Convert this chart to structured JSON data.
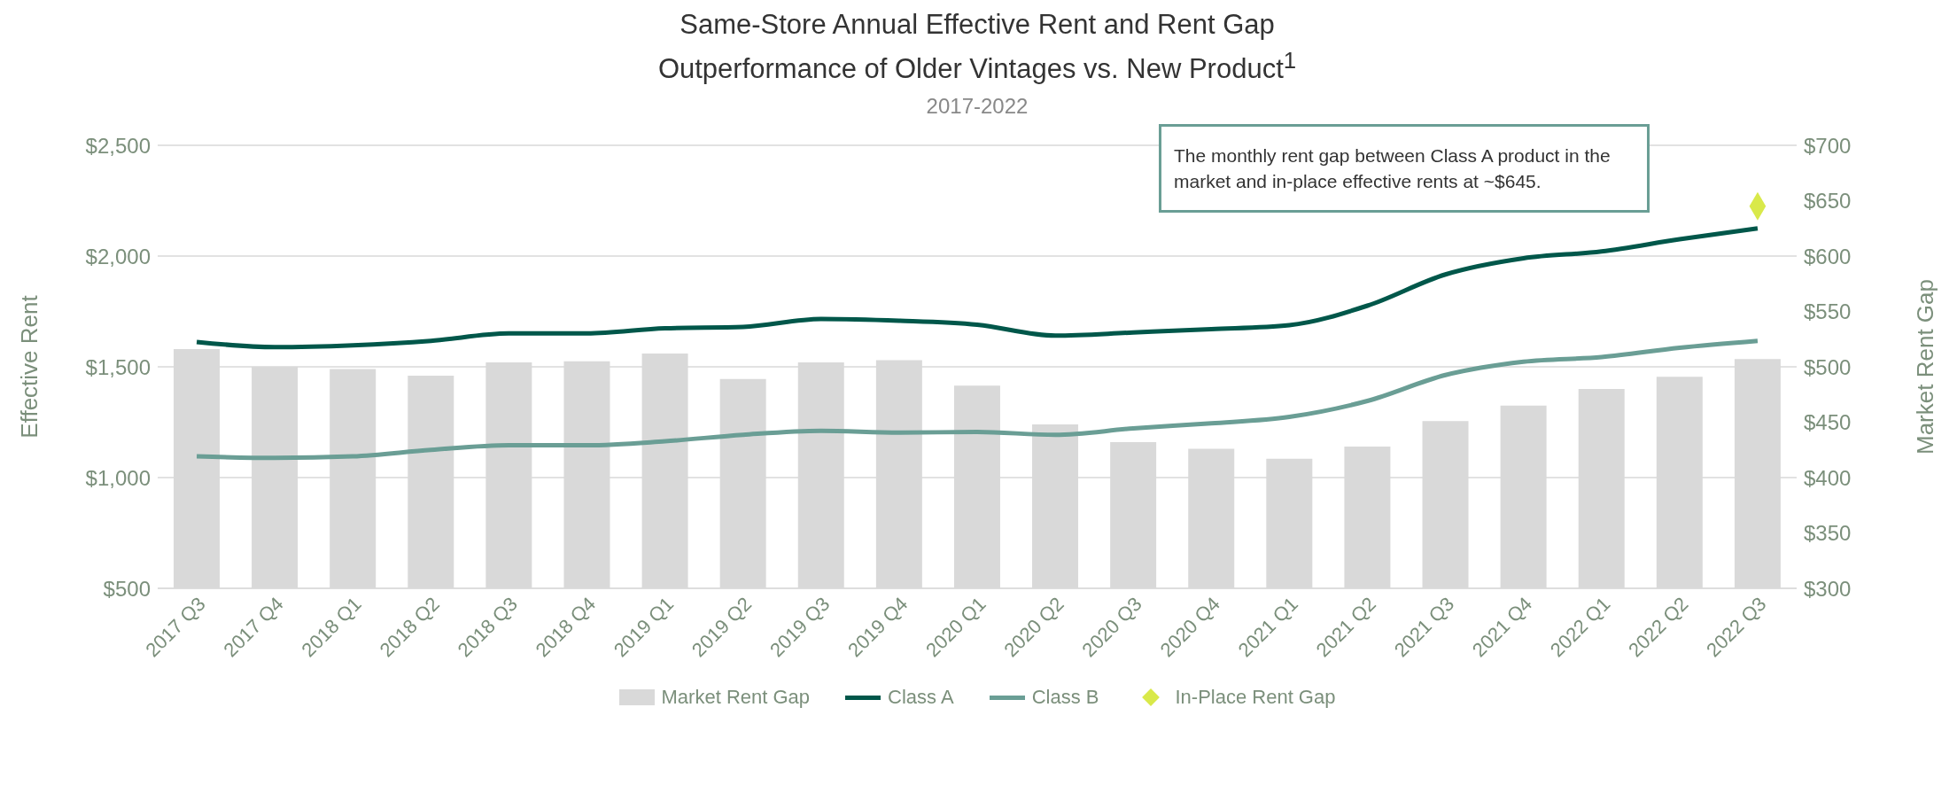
{
  "chart_data": {
    "type": "bar",
    "title": "Same-Store Annual Effective Rent and Rent Gap\nOutperformance of Older Vintages vs. New Product$^{1}$",
    "subtitle": "2017-2022",
    "ylabel": "Effective Rent",
    "y2label": "Market Rent Gap",
    "categories": [
      "2017 Q3",
      "2017 Q4",
      "2018 Q1",
      "2018 Q2",
      "2018 Q3",
      "2018 Q4",
      "2019 Q1",
      "2019 Q2",
      "2019 Q3",
      "2019 Q4",
      "2020 Q1",
      "2020 Q2",
      "2020 Q3",
      "2020 Q4",
      "2021 Q1",
      "2021 Q2",
      "2021 Q3",
      "2021 Q4",
      "2022 Q1",
      "2022 Q2",
      "2022 Q3"
    ],
    "series": [
      {
        "name": "Market Rent Gap",
        "axis": "y2",
        "color": "#d9d9d9",
        "values": [
          516,
          500,
          498,
          492,
          504,
          505,
          512,
          489,
          504,
          506,
          483,
          448,
          432,
          426,
          417,
          428,
          451,
          465,
          480,
          491,
          507
        ]
      },
      {
        "name": "Class A",
        "type": "line",
        "color": "#00574a",
        "marker": "none",
        "values": [
          1612,
          1589,
          1597,
          1617,
          1651,
          1651,
          1674,
          1680,
          1716,
          1708,
          1690,
          1641,
          1655,
          1670,
          1688,
          1776,
          1917,
          1990,
          2021,
          2076,
          2125
        ]
      },
      {
        "name": "Class B",
        "type": "line",
        "color": "#6a9e95",
        "marker": "none",
        "values": [
          1096,
          1089,
          1096,
          1125,
          1146,
          1146,
          1164,
          1193,
          1211,
          1203,
          1206,
          1193,
          1222,
          1245,
          1274,
          1346,
          1463,
          1523,
          1544,
          1586,
          1617
        ]
      },
      {
        "name": "In-Place Rent Gap",
        "type": "scatter",
        "axis": "y2",
        "color": "#d9e94a",
        "marker": "diamond",
        "values": [
          null,
          null,
          null,
          null,
          null,
          null,
          null,
          null,
          null,
          null,
          null,
          null,
          null,
          null,
          null,
          null,
          null,
          null,
          null,
          null,
          645
        ]
      }
    ],
    "ylim": [
      500,
      2500
    ],
    "yticks": [
      {
        "value": 500,
        "label": "$500"
      },
      {
        "value": 1000,
        "label": "$1,000"
      },
      {
        "value": 1500,
        "label": "$1,500"
      },
      {
        "value": 2000,
        "label": "$2,000"
      },
      {
        "value": 2500,
        "label": "$2,500"
      }
    ],
    "y2lim": [
      300,
      700
    ],
    "y2ticks": [
      {
        "value": 300,
        "label": "$300"
      },
      {
        "value": 350,
        "label": "$350"
      },
      {
        "value": 400,
        "label": "$400"
      },
      {
        "value": 450,
        "label": "$450"
      },
      {
        "value": 500,
        "label": "$500"
      },
      {
        "value": 550,
        "label": "$550"
      },
      {
        "value": 600,
        "label": "$600"
      },
      {
        "value": 650,
        "label": "$650"
      },
      {
        "value": 700,
        "label": "$700"
      }
    ],
    "grid": "y",
    "legend": "bottom",
    "annotations": [
      "The monthly rent gap between Class A product in the market and in-place effective rents at ~$645."
    ]
  }
}
